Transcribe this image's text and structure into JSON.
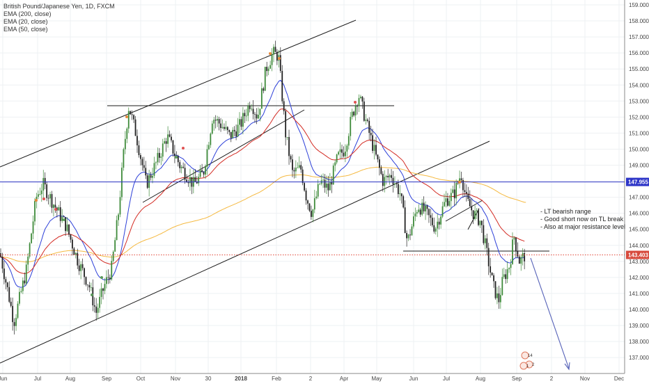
{
  "chart_data": {
    "type": "candlestick",
    "symbol_title": "British Pound/Japanese Yen, 1D, FXCM",
    "indicators": [
      {
        "name": "EMA (200, close)",
        "color": "#f5b940"
      },
      {
        "name": "EMA (20, close)",
        "color": "#2c3fd8"
      },
      {
        "name": "EMA (50, close)",
        "color": "#d32a22"
      }
    ],
    "y_axis": {
      "ticks": [
        "137.000",
        "138.000",
        "139.000",
        "140.000",
        "141.000",
        "142.000",
        "143.000",
        "144.000",
        "145.000",
        "146.000",
        "147.000",
        "148.000",
        "149.000",
        "150.000",
        "151.000",
        "152.000",
        "153.000",
        "154.000",
        "155.000",
        "156.000",
        "157.000",
        "158.000",
        "159.000"
      ],
      "ylim": [
        136.45,
        159.35
      ]
    },
    "x_axis": {
      "labels": [
        "Jun",
        "Jul",
        "Aug",
        "Sep",
        "Oct",
        "Nov",
        "30",
        "2018",
        "Feb",
        "2",
        "Apr",
        "May",
        "Jun",
        "Jul",
        "Aug",
        "Sep",
        "2",
        "Nov",
        "Dec"
      ]
    },
    "price_labels": [
      {
        "text": "147.955",
        "value": 147.955,
        "color": "#2d35c8"
      },
      {
        "text": "143.403",
        "value": 143.403,
        "color": "#d74a3c"
      }
    ],
    "horizontal_lines": [
      {
        "value": 147.955,
        "style": "solid",
        "color": "#3038c8"
      },
      {
        "value": 143.403,
        "style": "dotted",
        "color": "#e0483a"
      }
    ],
    "annotations": [
      "- LT bearish range",
      "- Good short now on TL break and",
      "- Also at major resistance level"
    ],
    "event_markers": [
      "14",
      "2",
      "1"
    ]
  }
}
